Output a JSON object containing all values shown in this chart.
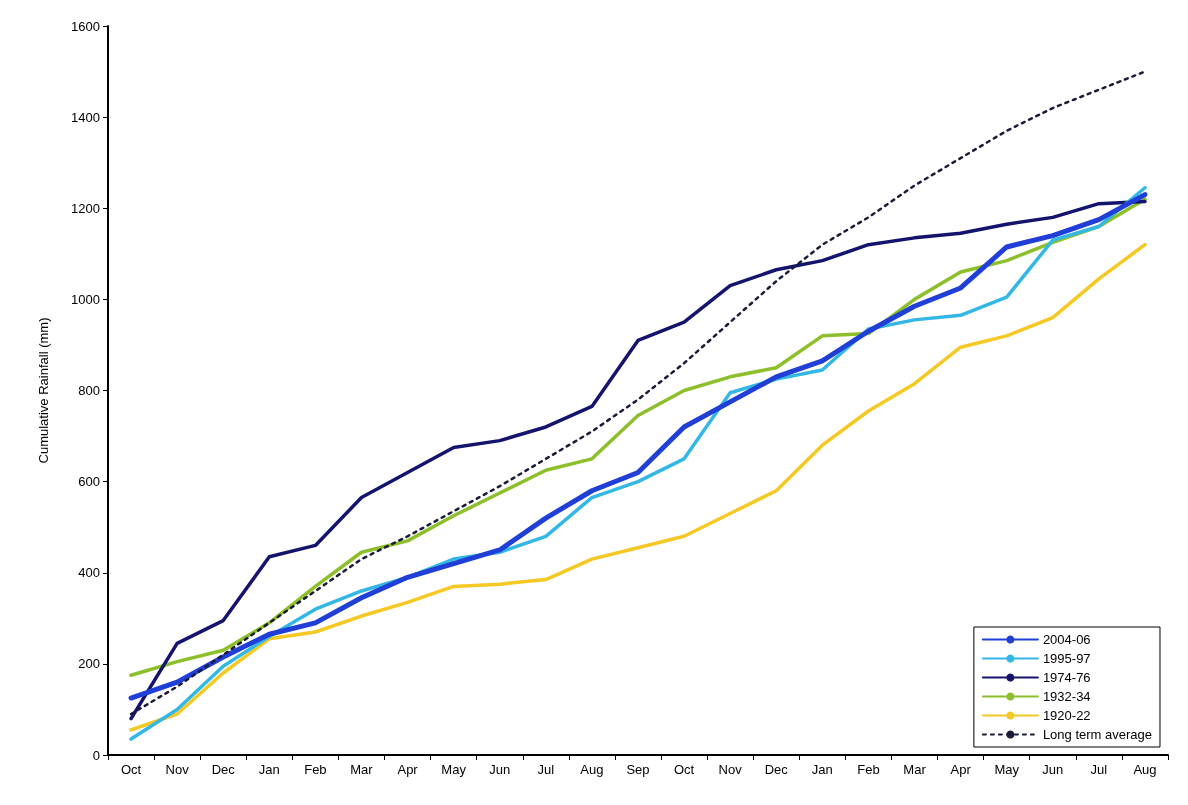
{
  "chart_data": {
    "type": "line",
    "ylabel": "Cumulative Rainfall (mm)",
    "categories": [
      "Oct",
      "Nov",
      "Dec",
      "Jan",
      "Feb",
      "Mar",
      "Apr",
      "May",
      "Jun",
      "Jul",
      "Aug",
      "Sep",
      "Oct",
      "Nov",
      "Dec",
      "Jan",
      "Feb",
      "Mar",
      "Apr",
      "May",
      "Jun",
      "Jul",
      "Aug"
    ],
    "series": [
      {
        "name": "2004-06",
        "color": "#1f3fd6",
        "values": [
          125,
          160,
          215,
          265,
          290,
          345,
          390,
          420,
          450,
          520,
          580,
          620,
          720,
          775,
          830,
          865,
          930,
          985,
          1025,
          1115,
          1140,
          1175,
          1230
        ]
      },
      {
        "name": "1995-97",
        "color": "#33b7e6",
        "values": [
          35,
          100,
          195,
          260,
          320,
          360,
          390,
          430,
          445,
          480,
          565,
          600,
          650,
          795,
          825,
          845,
          935,
          955,
          965,
          1005,
          1130,
          1160,
          1245
        ]
      },
      {
        "name": "1974-76",
        "color": "#14146e",
        "values": [
          80,
          245,
          295,
          435,
          460,
          565,
          620,
          675,
          690,
          720,
          765,
          910,
          950,
          1030,
          1065,
          1085,
          1120,
          1135,
          1145,
          1165,
          1180,
          1210,
          1215
        ]
      },
      {
        "name": "1932-34",
        "color": "#8cbf2a",
        "values": [
          175,
          205,
          230,
          290,
          370,
          445,
          470,
          525,
          575,
          625,
          650,
          745,
          800,
          830,
          850,
          920,
          925,
          1000,
          1060,
          1085,
          1125,
          1160,
          1220
        ]
      },
      {
        "name": "1920-22",
        "color": "#f5c823",
        "values": [
          55,
          90,
          180,
          255,
          270,
          305,
          335,
          370,
          375,
          385,
          430,
          455,
          480,
          530,
          580,
          680,
          755,
          815,
          895,
          920,
          960,
          1045,
          1120
        ]
      },
      {
        "name": "Long term average",
        "color": "#1a1a3a",
        "line_style": "dashed",
        "values": [
          90,
          150,
          220,
          290,
          360,
          430,
          480,
          535,
          590,
          650,
          710,
          780,
          860,
          950,
          1040,
          1120,
          1180,
          1250,
          1310,
          1370,
          1420,
          1460,
          1500
        ]
      }
    ],
    "ylim": [
      0,
      1600
    ],
    "yticks": [
      0,
      200,
      400,
      600,
      800,
      1000,
      1200,
      1400,
      1600
    ],
    "grid": false,
    "legend": "bottom right",
    "marker": "none",
    "line_style": "solid"
  }
}
